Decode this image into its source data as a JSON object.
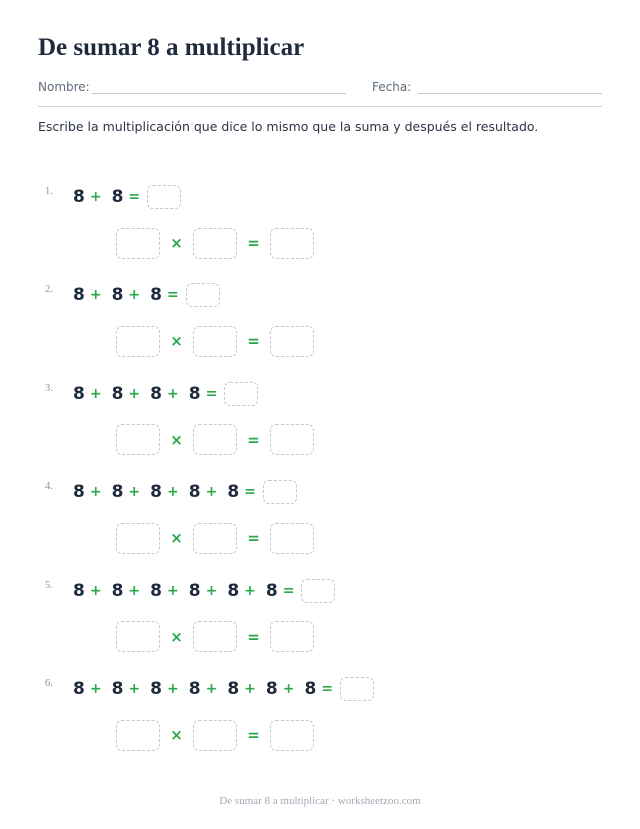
{
  "title": "De sumar 8 a multiplicar",
  "header": {
    "name_label": "Nombre:",
    "date_label": "Fecha:"
  },
  "instructions": "Escribe la multiplicación que dice lo mismo que la suma y después el resultado.",
  "symbols": {
    "plus": "+",
    "equals": "=",
    "times": "×"
  },
  "problems": [
    {
      "number": "1.",
      "addends": [
        "8",
        "8"
      ]
    },
    {
      "number": "2.",
      "addends": [
        "8",
        "8",
        "8"
      ]
    },
    {
      "number": "3.",
      "addends": [
        "8",
        "8",
        "8",
        "8"
      ]
    },
    {
      "number": "4.",
      "addends": [
        "8",
        "8",
        "8",
        "8",
        "8"
      ]
    },
    {
      "number": "5.",
      "addends": [
        "8",
        "8",
        "8",
        "8",
        "8",
        "8"
      ]
    },
    {
      "number": "6.",
      "addends": [
        "8",
        "8",
        "8",
        "8",
        "8",
        "8",
        "8"
      ]
    }
  ],
  "footer": "De sumar 8 a multiplicar · worksheetzoo.com",
  "colors": {
    "operator": "#2aa84a",
    "text": "#1f2a3c",
    "box_border": "#c4c9d1"
  }
}
